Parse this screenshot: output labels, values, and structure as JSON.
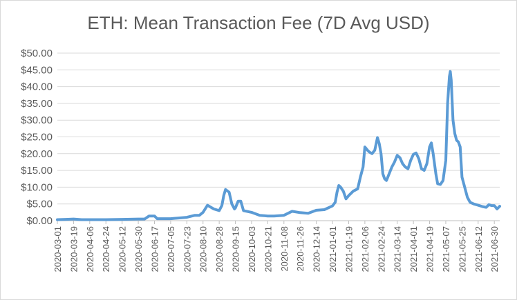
{
  "chart_data": {
    "type": "line",
    "title": "ETH: Mean Transaction Fee (7D Avg USD)",
    "xlabel": "",
    "ylabel": "",
    "ylim": [
      0,
      50
    ],
    "ytick_labels": [
      "$0.00",
      "$5.00",
      "$10.00",
      "$15.00",
      "$20.00",
      "$25.00",
      "$30.00",
      "$35.00",
      "$40.00",
      "$45.00",
      "$50.00"
    ],
    "xtick_labels": [
      "2020-03-01",
      "2020-03-19",
      "2020-04-06",
      "2020-04-24",
      "2020-05-12",
      "2020-05-30",
      "2020-06-17",
      "2020-07-05",
      "2020-07-23",
      "2020-08-10",
      "2020-08-28",
      "2020-09-15",
      "2020-10-03",
      "2020-10-21",
      "2020-11-08",
      "2020-11-26",
      "2020-12-14",
      "2021-01-01",
      "2021-01-19",
      "2021-02-06",
      "2021-02-24",
      "2021-03-14",
      "2021-04-01",
      "2021-04-19",
      "2021-05-07",
      "2021-05-25",
      "2021-06-12",
      "2021-06-30"
    ],
    "grid": true,
    "legend": "none",
    "line_color": "#5b9bd5",
    "series": [
      {
        "x": [
          "2020-03-01",
          "2020-03-10",
          "2020-03-19",
          "2020-03-28",
          "2020-04-06",
          "2020-04-24",
          "2020-05-12",
          "2020-05-30",
          "2020-06-06",
          "2020-06-11",
          "2020-06-17",
          "2020-06-20",
          "2020-07-05",
          "2020-07-23",
          "2020-08-01",
          "2020-08-06",
          "2020-08-10",
          "2020-08-15",
          "2020-08-22",
          "2020-08-28",
          "2020-08-31",
          "2020-09-02",
          "2020-09-04",
          "2020-09-08",
          "2020-09-11",
          "2020-09-14",
          "2020-09-15",
          "2020-09-18",
          "2020-09-21",
          "2020-09-24",
          "2020-10-03",
          "2020-10-12",
          "2020-10-21",
          "2020-10-28",
          "2020-11-08",
          "2020-11-17",
          "2020-11-26",
          "2020-12-05",
          "2020-12-14",
          "2020-12-23",
          "2021-01-01",
          "2021-01-04",
          "2021-01-06",
          "2021-01-08",
          "2021-01-10",
          "2021-01-13",
          "2021-01-16",
          "2021-01-19",
          "2021-01-24",
          "2021-01-29",
          "2021-02-01",
          "2021-02-04",
          "2021-02-06",
          "2021-02-09",
          "2021-02-11",
          "2021-02-14",
          "2021-02-17",
          "2021-02-20",
          "2021-02-22",
          "2021-02-24",
          "2021-02-26",
          "2021-02-28",
          "2021-03-02",
          "2021-03-05",
          "2021-03-08",
          "2021-03-11",
          "2021-03-14",
          "2021-03-17",
          "2021-03-20",
          "2021-03-23",
          "2021-03-26",
          "2021-03-29",
          "2021-04-01",
          "2021-04-04",
          "2021-04-07",
          "2021-04-10",
          "2021-04-13",
          "2021-04-16",
          "2021-04-19",
          "2021-04-21",
          "2021-04-23",
          "2021-04-26",
          "2021-04-28",
          "2021-05-01",
          "2021-05-04",
          "2021-05-07",
          "2021-05-09",
          "2021-05-11",
          "2021-05-12",
          "2021-05-13",
          "2021-05-15",
          "2021-05-17",
          "2021-05-19",
          "2021-05-21",
          "2021-05-23",
          "2021-05-25",
          "2021-05-27",
          "2021-05-29",
          "2021-05-31",
          "2021-06-03",
          "2021-06-07",
          "2021-06-12",
          "2021-06-17",
          "2021-06-21",
          "2021-06-24",
          "2021-06-27",
          "2021-06-30",
          "2021-07-03",
          "2021-07-06"
        ],
        "values": [
          0.3,
          0.4,
          0.5,
          0.3,
          0.3,
          0.3,
          0.4,
          0.5,
          0.5,
          1.4,
          1.4,
          0.6,
          0.6,
          1.0,
          1.6,
          1.6,
          2.5,
          4.6,
          3.5,
          3.0,
          4.5,
          7.5,
          9.3,
          8.5,
          5.0,
          3.5,
          3.8,
          5.8,
          5.8,
          3.0,
          2.5,
          1.6,
          1.4,
          1.4,
          1.6,
          2.8,
          2.4,
          2.2,
          3.1,
          3.3,
          4.4,
          5.5,
          8.5,
          10.5,
          10.0,
          8.8,
          6.5,
          7.5,
          8.8,
          9.5,
          13.0,
          16.0,
          22.0,
          21.0,
          20.5,
          20.0,
          21.0,
          24.8,
          23.0,
          20.0,
          14.0,
          12.5,
          12.0,
          14.0,
          16.0,
          17.5,
          19.5,
          18.8,
          17.0,
          16.0,
          15.5,
          18.0,
          19.8,
          20.2,
          18.5,
          15.5,
          15.0,
          17.0,
          22.0,
          23.2,
          20.0,
          14.0,
          11.0,
          10.8,
          12.0,
          18.0,
          35.0,
          43.0,
          44.5,
          42.0,
          30.0,
          26.0,
          24.0,
          23.5,
          22.0,
          13.0,
          11.0,
          9.0,
          7.0,
          5.5,
          5.0,
          4.6,
          4.2,
          4.0,
          4.8,
          4.5,
          4.5,
          3.5,
          4.3
        ]
      }
    ]
  }
}
